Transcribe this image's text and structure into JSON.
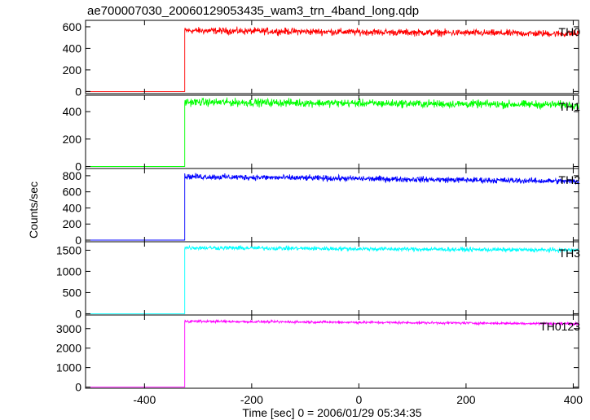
{
  "chart_data": {
    "type": "line",
    "title": "ae700007030_20060129053435_wam3_trn_4band_long.qdp",
    "xlabel": "Time [sec] 0 = 2006/01/29 05:34:35",
    "ylabel": "Counts/sec",
    "xlim": [
      -510,
      410
    ],
    "xticks": [
      "-400",
      "-200",
      "0",
      "200",
      "400"
    ],
    "xtick_values": [
      -400,
      -200,
      0,
      200,
      400
    ],
    "onset_time": -325,
    "panels": [
      {
        "name": "TH0",
        "color": "#ff0000",
        "ylim": [
          -20,
          660
        ],
        "yticks": [
          "0",
          "200",
          "400",
          "600"
        ],
        "ytick_values": [
          0,
          200,
          400,
          600
        ],
        "pre_level": 0,
        "peak": 565,
        "end": 535,
        "noise": 22
      },
      {
        "name": "TH1",
        "color": "#00ff00",
        "ylim": [
          -15,
          520
        ],
        "yticks": [
          "0",
          "200",
          "400"
        ],
        "ytick_values": [
          0,
          200,
          400
        ],
        "pre_level": 0,
        "peak": 470,
        "end": 450,
        "noise": 20
      },
      {
        "name": "TH2",
        "color": "#0000ff",
        "ylim": [
          -20,
          890
        ],
        "yticks": [
          "0",
          "200",
          "400",
          "600",
          "800"
        ],
        "ytick_values": [
          0,
          200,
          400,
          600,
          800
        ],
        "pre_level": 0,
        "peak": 790,
        "end": 730,
        "noise": 25
      },
      {
        "name": "TH3",
        "color": "#00ffff",
        "ylim": [
          -30,
          1700
        ],
        "yticks": [
          "0",
          "500",
          "1000",
          "1500"
        ],
        "ytick_values": [
          0,
          500,
          1000,
          1500
        ],
        "pre_level": 0,
        "peak": 1560,
        "end": 1500,
        "noise": 35
      },
      {
        "name": "TH0123",
        "color": "#ff00ff",
        "ylim": [
          -60,
          3700
        ],
        "yticks": [
          "0",
          "1000",
          "2000",
          "3000"
        ],
        "ytick_values": [
          0,
          1000,
          2000,
          3000
        ],
        "pre_level": 0,
        "peak": 3380,
        "end": 3250,
        "noise": 45
      }
    ],
    "grid": false,
    "legend": "none"
  }
}
